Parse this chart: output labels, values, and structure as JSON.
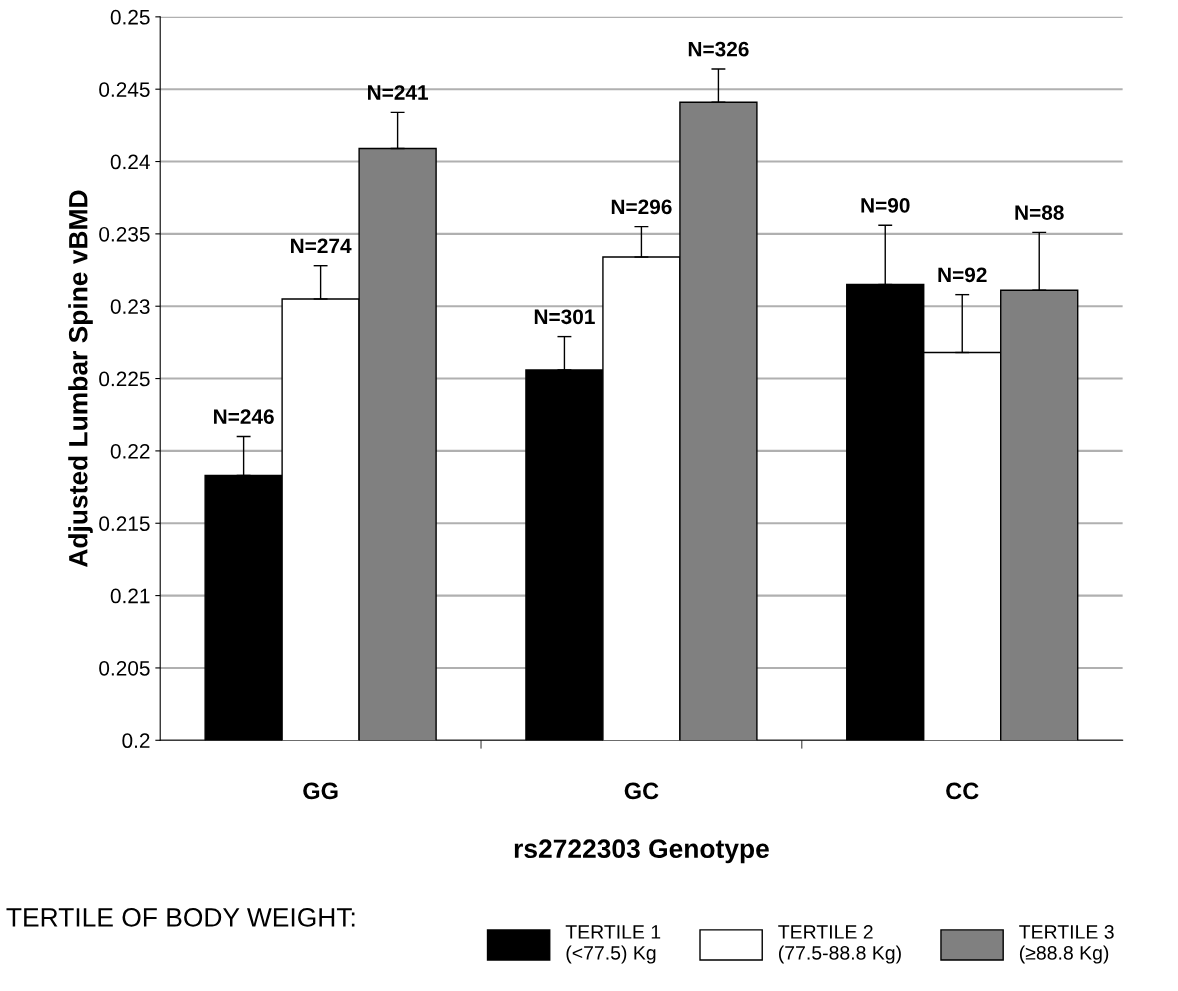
{
  "chart_data": {
    "type": "bar",
    "xlabel": "rs2722303 Genotype",
    "ylabel": "Adjusted Lumbar Spine vBMD",
    "legend_title": "TERTILE OF BODY WEIGHT:",
    "categories": [
      "GG",
      "GC",
      "CC"
    ],
    "series": [
      {
        "name": "TERTILE 1\n(<77.5) Kg",
        "color": "#000000",
        "values": [
          0.2183,
          0.2256,
          0.2315
        ],
        "errors": [
          [
            0.2183,
            0.221
          ],
          [
            0.2256,
            0.2279
          ],
          [
            0.2315,
            0.2356
          ]
        ]
      },
      {
        "name": "TERTILE 2\n(77.5-88.8 Kg)",
        "color": "#ffffff",
        "values": [
          0.2305,
          0.2334,
          0.2268
        ],
        "errors": [
          [
            0.2305,
            0.2328
          ],
          [
            0.2334,
            0.2355
          ],
          [
            0.2268,
            0.2308
          ]
        ]
      },
      {
        "name": "TERTILE 3\n(≥88.8 Kg)",
        "color": "#808080",
        "values": [
          0.2409,
          0.2441,
          0.2311
        ],
        "errors": [
          [
            0.2409,
            0.2434
          ],
          [
            0.2441,
            0.2464
          ],
          [
            0.2311,
            0.2351
          ]
        ]
      }
    ],
    "annotations": [
      "N=246",
      "N=274",
      "N=241",
      "N=301",
      "N=296",
      "N=326",
      "N=90",
      "N=92",
      "N=88"
    ],
    "ylim": [
      0.2,
      0.25
    ],
    "yticks": [
      {
        "value": 0.2,
        "label": "0.2"
      },
      {
        "value": 0.205,
        "label": "0.205"
      },
      {
        "value": 0.21,
        "label": "0.21"
      },
      {
        "value": 0.215,
        "label": "0.215"
      },
      {
        "value": 0.22,
        "label": "0.22"
      },
      {
        "value": 0.225,
        "label": "0.225"
      },
      {
        "value": 0.23,
        "label": "0.23"
      },
      {
        "value": 0.235,
        "label": "0.235"
      },
      {
        "value": 0.24,
        "label": "0.24"
      },
      {
        "value": 0.245,
        "label": "0.245"
      },
      {
        "value": 0.25,
        "label": "0.25"
      }
    ],
    "grid": "y",
    "legend": "bottom"
  }
}
